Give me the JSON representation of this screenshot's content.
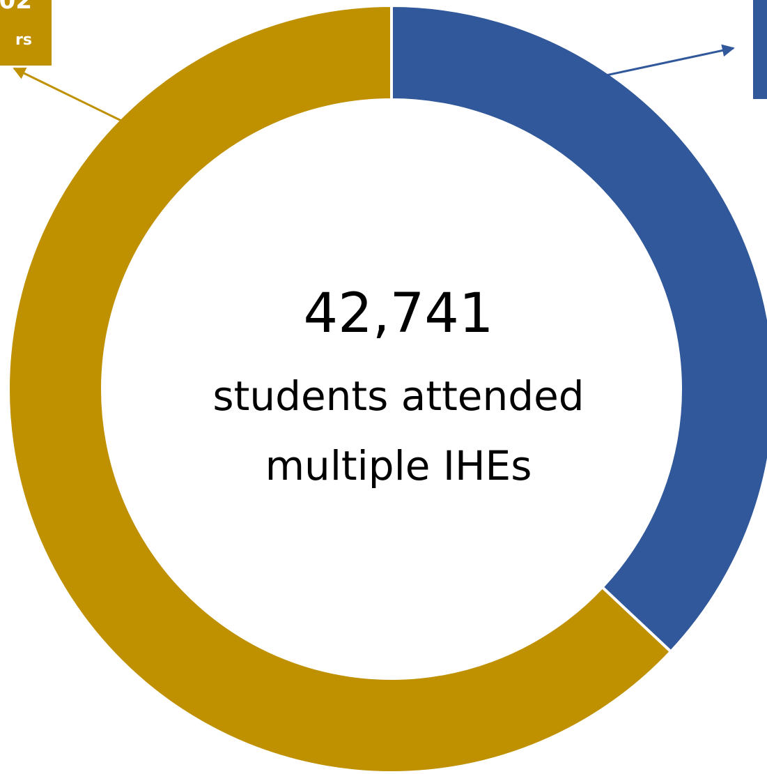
{
  "chart_data": {
    "type": "pie",
    "variant": "donut",
    "center": {
      "value": "42,741",
      "line1": "students attended",
      "line2": "multiple IHEs"
    },
    "slices": [
      {
        "share": 0.37,
        "color": "#30589A"
      },
      {
        "share": 0.63,
        "color": "#BF9000"
      }
    ],
    "callouts": [
      {
        "slice_index": 1,
        "value_fragment": "02",
        "label_fragment": "rs",
        "color": "#BF9000"
      },
      {
        "slice_index": 0,
        "value_fragment": "",
        "label_fragment": "",
        "color": "#30589A"
      }
    ]
  }
}
